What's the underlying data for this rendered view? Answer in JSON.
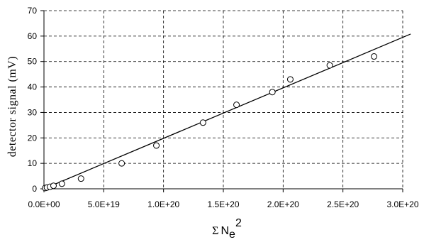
{
  "chart_data": {
    "type": "scatter",
    "ylabel": "detector signal (mV)",
    "xlabel": {
      "sigma": "Σ",
      "base": "N",
      "subscript": "e",
      "superscript": "2"
    },
    "xlim": [
      0,
      3e+20
    ],
    "ylim": [
      0,
      70
    ],
    "x_ticks": [
      0,
      5e+19,
      1e+20,
      1.5e+20,
      2e+20,
      2.5e+20,
      3e+20
    ],
    "x_tick_labels": [
      "0.0E+00",
      "5.0E+19",
      "1.0E+20",
      "1.5E+20",
      "2.0E+20",
      "2.5E+20",
      "3.0E+20"
    ],
    "y_ticks": [
      0,
      10,
      20,
      30,
      40,
      50,
      60,
      70
    ],
    "y_tick_labels": [
      "0",
      "10",
      "20",
      "30",
      "40",
      "50",
      "60",
      "70"
    ],
    "grid": {
      "y": "dashed",
      "x": "dashed"
    },
    "legend": "none",
    "series": [
      {
        "marker": "open-circle",
        "x": [
          1e+18,
          2.5e+18,
          5e+18,
          8e+18,
          1.5e+19,
          3.1e+19,
          6.5e+19,
          9.4e+19,
          1.33e+20,
          1.61e+20,
          1.91e+20,
          2.06e+20,
          2.39e+20,
          2.76e+20
        ],
        "y": [
          0.3,
          0.5,
          0.8,
          1.2,
          2.0,
          4.0,
          10.0,
          17.0,
          26.0,
          33.0,
          38.0,
          43.0,
          48.5,
          52.0
        ]
      }
    ],
    "fit_line": {
      "style": "solid",
      "x": [
        0,
        3e+20
      ],
      "y": [
        0,
        59.5
      ]
    }
  }
}
